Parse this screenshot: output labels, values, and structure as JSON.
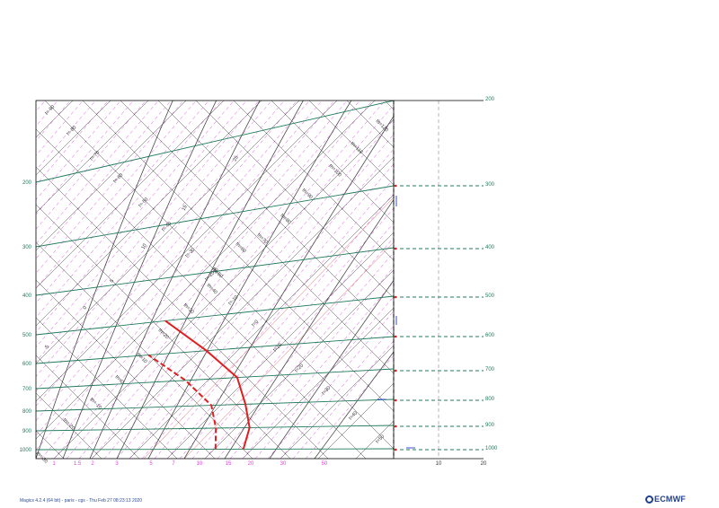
{
  "footer_text": "Magics 4.2.4 (64 bit) - paris - cgs - Thu Feb 27 08:23:13 2020",
  "logo_text": "ECMWF",
  "colors": {
    "isobar": "#1f7a5a",
    "isotherm": "#4a4a4a",
    "dry_adiabat": "#4a4a4a",
    "mixing_ratio": "#e040e0",
    "temperature_profile": "#e02020",
    "dewpoint_profile": "#e02020",
    "wind_level_line": "#1f7a5a",
    "frame": "#000000"
  },
  "chart_data": {
    "type": "line",
    "title": "",
    "left_pressure_labels": [
      "200",
      "300",
      "400",
      "500",
      "600",
      "700",
      "800",
      "900",
      "1000"
    ],
    "right_pressure_labels": [
      "200",
      "300",
      "400",
      "500",
      "600",
      "700",
      "800",
      "900",
      "1000"
    ],
    "mixing_ratio_labels": [
      "1",
      "1.5",
      "2",
      "3",
      "5",
      "7",
      "10",
      "15",
      "20",
      "30",
      "50"
    ],
    "wind_axis_labels": [
      "10",
      "20"
    ],
    "isotherm_labels": [
      "t=-90",
      "t=-80",
      "t=-70",
      "t=-60",
      "t=-50",
      "t=-40",
      "t=-30",
      "t=-20",
      "t=-10",
      "t=0",
      "t=10",
      "t=20",
      "t=30",
      "t=40",
      "t=50"
    ],
    "dry_adiabat_labels": [
      "th=-30",
      "th=-20",
      "th=-10",
      "th=0",
      "th=10",
      "th=20",
      "th=30",
      "th=40",
      "th=50",
      "th=60",
      "th=70",
      "th=80",
      "th=90",
      "th=100",
      "th=110",
      "th=120"
    ],
    "saturated_adiabat_labels": [
      "-5",
      "0",
      "5",
      "10",
      "15",
      "20",
      "25"
    ],
    "temperature_profile": {
      "name": "",
      "points": [
        {
          "p": 1000,
          "t": 9
        },
        {
          "p": 900,
          "t": 8
        },
        {
          "p": 800,
          "t": 5
        },
        {
          "p": 700,
          "t": 1
        },
        {
          "p": 600,
          "t": -7
        },
        {
          "p": 500,
          "t": -17
        }
      ]
    },
    "dewpoint_profile": {
      "name": "",
      "points": [
        {
          "p": 1000,
          "t": 4
        },
        {
          "p": 900,
          "t": 2
        },
        {
          "p": 800,
          "t": -1
        },
        {
          "p": 700,
          "t": -8
        },
        {
          "p": 600,
          "t": -17
        }
      ]
    },
    "wind_levels": [
      300,
      400,
      500,
      600,
      700,
      800,
      900,
      1000
    ]
  }
}
